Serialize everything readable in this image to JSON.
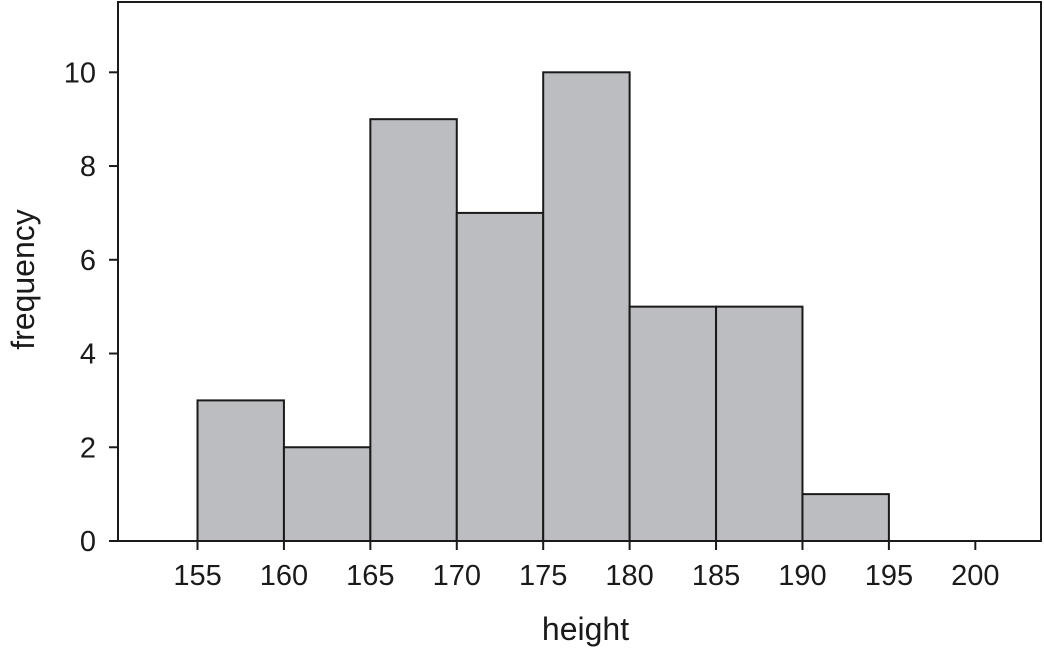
{
  "chart_data": {
    "type": "bar",
    "title": "",
    "xlabel": "height",
    "ylabel": "frequency",
    "bins": [
      {
        "start": 155,
        "end": 160,
        "frequency": 3
      },
      {
        "start": 160,
        "end": 165,
        "frequency": 2
      },
      {
        "start": 165,
        "end": 170,
        "frequency": 9
      },
      {
        "start": 170,
        "end": 175,
        "frequency": 7
      },
      {
        "start": 175,
        "end": 180,
        "frequency": 10
      },
      {
        "start": 180,
        "end": 185,
        "frequency": 5
      },
      {
        "start": 185,
        "end": 190,
        "frequency": 5
      },
      {
        "start": 190,
        "end": 195,
        "frequency": 1
      }
    ],
    "xlim": [
      150.4,
      203.8
    ],
    "ylim": [
      0,
      11.5
    ],
    "xticks": [
      "155",
      "160",
      "165",
      "170",
      "175",
      "180",
      "185",
      "190",
      "195",
      "200"
    ],
    "yticks": [
      "0",
      "2",
      "4",
      "6",
      "8",
      "10"
    ],
    "grid": false,
    "bar_color": "#bcbdc0",
    "edge_color": "#1a1a1a"
  }
}
